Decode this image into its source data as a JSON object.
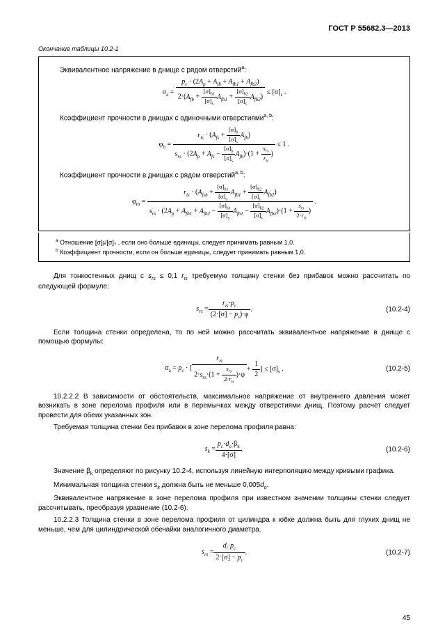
{
  "header": "ГОСТ Р 55682.3—2013",
  "caption": "Окончание таблицы 10.2-1",
  "box": {
    "p1": "Эквивалентное напряжение в днище с рядом отверстий",
    "p1_sup": "a",
    "p2": "Коэффициент прочности в днищах с одиночными отверстиями",
    "p2_sup": "a, b",
    "p3": "Коэффициент прочности в днищах с рядом отверстий",
    "p3_sup": "a, b"
  },
  "footnotes": {
    "a": "Отношение [σ]ᵦ/[σ]ₛ , если оно больше единицы, следует принимать равным 1,0.",
    "b": "Коэффициент прочности, если он больше единицы, следует принимать равным 1,0.",
    "a_mark": "a",
    "b_mark": "b"
  },
  "body": {
    "p1a": "Для тонкостенных днищ с ",
    "p1b": " ≤ 0,1 ",
    "p1c": " требуемую толщину стенки без прибавок можно рассчитать по следующей формуле:",
    "p2": "Если толщина стенки определена, то по ней можно рассчитать эквивалентное напряжение в днище с помощью формулы:",
    "p3": "10.2.2.2 В зависимости от обстоятельств, максимальное напряжение от внутреннего давления может возникать в зоне перелома профиля или в перемычках между отверстиями днищ. Поэтому расчет следует провести для обеих указанных зон.",
    "p4": "Требуемая толщина стенки без прибавок в зоне перелома профиля равна:",
    "p5a": "Значение β",
    "p5b": " определяют по рисунку 10.2-4, используя линейную интерполяцию между кривыми графика.",
    "p6a": "Минимальная толщина стенки ",
    "p6b": " должна быть не меньше 0,005",
    "p7": "Эквивалентное напряжение в зоне перелома профиля при известном значении толщины стенки следует рассчитывать, преобразуя уравнение (10.2-6).",
    "p8": "10.2.2.3 Толщина стенки в зоне перелома профиля от цилиндра к юбке должна быть для глухих днищ не меньше, чем для цилиндрической обечайки аналогичного диаметра."
  },
  "eqnums": {
    "e1": "(10.2-4)",
    "e2": "(10.2-5)",
    "e3": "(10.2-6)",
    "e4": "(10.2-7)"
  },
  "pagenum": "45"
}
